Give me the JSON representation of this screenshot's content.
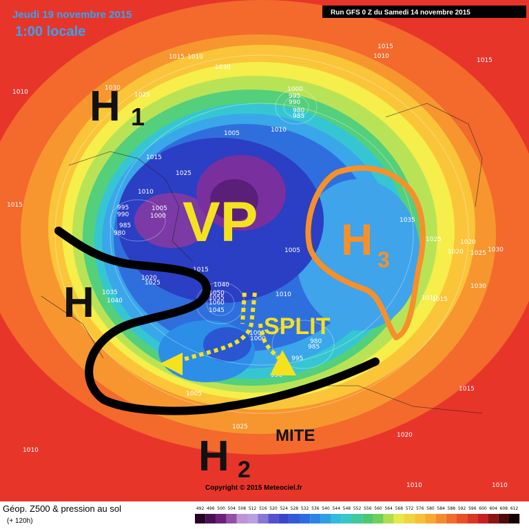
{
  "header": {
    "date": "Jeudi 19 novembre 2015",
    "time": "1:00 locale",
    "run": "Run GFS 0 Z du Samedi 14 novembre 2015"
  },
  "annotations": {
    "h1": "H",
    "h1_sub": "1",
    "vp": "VP",
    "h3": "H",
    "h3_sub": "3",
    "h": "H",
    "split": "SPLIT",
    "h2": "H",
    "h2_sub": "2",
    "mite": "MITE"
  },
  "isobars": [
    "1015",
    "1010",
    "1030",
    "1030",
    "1025",
    "1010",
    "1015",
    "1010",
    "1015",
    "1000",
    "995",
    "990",
    "980",
    "985",
    "1005",
    "1010",
    "1015",
    "1025",
    "1010",
    "995",
    "990",
    "985",
    "980",
    "1005",
    "1000",
    "1015",
    "1035",
    "1025",
    "1020",
    "1030",
    "1025",
    "1020",
    "1030",
    "1005",
    "1015",
    "1020",
    "1025",
    "1035",
    "1040",
    "1040",
    "1050",
    "1055",
    "1060",
    "1045",
    "1010",
    "1005",
    "1000",
    "980",
    "985",
    "995",
    "990",
    "1005",
    "1015",
    "1025",
    "1020",
    "1010",
    "1010",
    "1015",
    "1010",
    "1010"
  ],
  "footer": {
    "copyright": "Copyright © 2015 Meteociel.fr",
    "title": "Géop. Z500 & pression au sol",
    "lead": "(+ 120h)"
  },
  "colorbar": {
    "values": [
      492,
      496,
      500,
      504,
      508,
      512,
      516,
      520,
      524,
      528,
      532,
      536,
      540,
      544,
      548,
      552,
      556,
      560,
      564,
      568,
      572,
      576,
      580,
      584,
      588,
      592,
      596,
      600,
      604,
      608,
      612
    ]
  }
}
